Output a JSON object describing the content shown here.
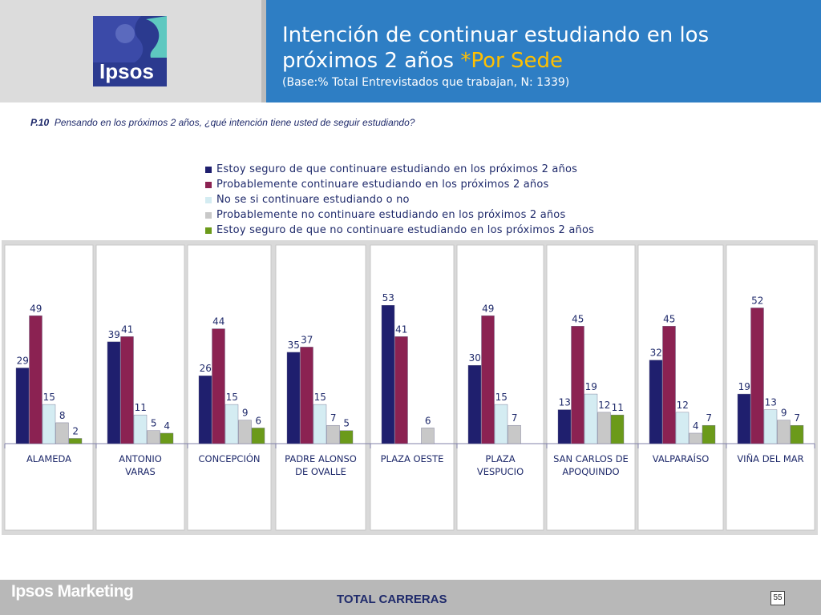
{
  "header": {
    "title_line1": "Intención de continuar estudiando en los",
    "title_line2": "próximos 2 años ",
    "title_accent": "*Por Sede",
    "subtitle": "(Base:% Total Entrevistados que trabajan, N: 1339)",
    "logo_text": "Ipsos"
  },
  "question": {
    "code": "P.10",
    "text": "Pensando en los próximos 2 años, ¿qué intención tiene usted de seguir estudiando?"
  },
  "footer": {
    "brand": "Ipsos Marketing",
    "title": "TOTAL CARRERAS",
    "page": "55"
  },
  "chart_data": {
    "type": "bar",
    "categories": [
      [
        "ALAMEDA"
      ],
      [
        "ANTONIO",
        "VARAS"
      ],
      [
        "CONCEPCIÓN"
      ],
      [
        "PADRE ALONSO",
        "DE OVALLE"
      ],
      [
        "PLAZA OESTE"
      ],
      [
        "PLAZA",
        "VESPUCIO"
      ],
      [
        "SAN CARLOS DE",
        "APOQUINDO"
      ],
      [
        "VALPARAÍSO"
      ],
      [
        "VIÑA DEL MAR"
      ]
    ],
    "series": [
      {
        "name": "Estoy seguro de que continuare estudiando en los próximos 2 años",
        "color": "#1f1f6e",
        "values": [
          29,
          39,
          26,
          35,
          53,
          30,
          13,
          32,
          19
        ]
      },
      {
        "name": "Probablemente continuare estudiando en los próximos 2 años",
        "color": "#8b2252",
        "values": [
          49,
          41,
          44,
          37,
          41,
          49,
          45,
          45,
          52
        ]
      },
      {
        "name": "No se si continuare estudiando o no",
        "color": "#d4ecf2",
        "values": [
          15,
          11,
          15,
          15,
          null,
          15,
          19,
          12,
          13
        ]
      },
      {
        "name": "Probablemente no continuare estudiando en los próximos 2 años",
        "color": "#c8c8c8",
        "values": [
          8,
          5,
          9,
          7,
          6,
          7,
          12,
          4,
          9
        ]
      },
      {
        "name": "Estoy seguro de que no continuare estudiando en los próximos 2 años",
        "color": "#6b9a1a",
        "values": [
          2,
          4,
          6,
          5,
          null,
          null,
          11,
          7,
          7
        ]
      }
    ],
    "ylim": [
      0,
      60
    ],
    "grid": false,
    "legend": "top"
  }
}
